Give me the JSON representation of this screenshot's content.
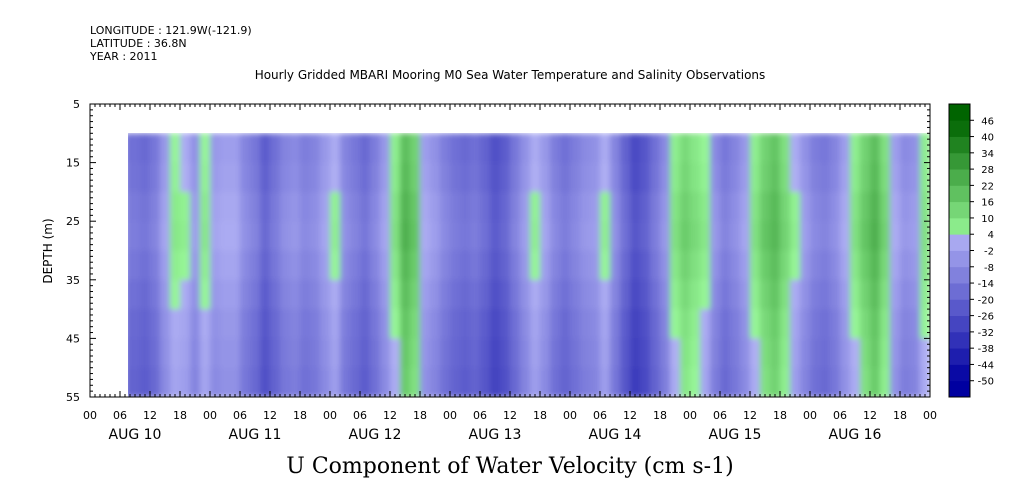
{
  "header": {
    "longitude": "LONGITUDE : 121.9W(-121.9)",
    "latitude": "LATITUDE : 36.8N",
    "year": "YEAR : 2011"
  },
  "chart_data": {
    "type": "heatmap",
    "title": "Hourly Gridded MBARI Mooring M0 Sea Water Temperature and Salinity Observations",
    "caption": "U Component of Water Velocity (cm s-1)",
    "ylabel": "DEPTH (m)",
    "ylim": [
      55,
      5
    ],
    "y_ticks": [
      5,
      15,
      25,
      35,
      45,
      55
    ],
    "data_depth_range": [
      10,
      55
    ],
    "x_hour_ticks": [
      "00",
      "06",
      "12",
      "18",
      "00",
      "06",
      "12",
      "18",
      "00",
      "06",
      "12",
      "18",
      "00",
      "06",
      "12",
      "18",
      "00",
      "06",
      "12",
      "18",
      "00",
      "06",
      "12",
      "18",
      "00",
      "06",
      "12",
      "18",
      "00"
    ],
    "x_day_labels": [
      "AUG 10",
      "AUG 11",
      "AUG 12",
      "AUG 13",
      "AUG 14",
      "AUG 15",
      "AUG 16"
    ],
    "x_range_hours": [
      0,
      168
    ],
    "data_start_hour": 7,
    "colorbar": {
      "levels": [
        -50,
        -44,
        -38,
        -32,
        -26,
        -20,
        -14,
        -8,
        -2,
        4,
        10,
        16,
        22,
        28,
        34,
        40,
        46
      ],
      "labels": [
        "46",
        "40",
        "34",
        "28",
        "22",
        "16",
        "10",
        "4",
        "-2",
        "-8",
        "-14",
        "-20",
        "-26",
        "-32",
        "-38",
        "-44",
        "-50"
      ]
    },
    "column_hours": [
      7,
      10,
      12,
      14,
      16,
      18,
      20,
      22,
      24,
      26,
      28,
      30,
      32,
      34,
      36,
      38,
      40,
      42,
      44,
      46,
      48,
      50,
      52,
      54,
      56,
      58,
      60,
      62,
      64,
      66,
      68,
      70,
      72,
      74,
      76,
      78,
      80,
      82,
      84,
      86,
      88,
      90,
      92,
      94,
      96,
      98,
      100,
      102,
      104,
      106,
      108,
      110,
      112,
      114,
      116,
      118,
      120,
      122,
      124,
      126,
      128,
      130,
      132,
      134,
      136,
      138,
      140,
      142,
      144,
      146,
      148,
      150,
      152,
      154,
      156,
      158,
      160,
      162,
      164,
      166,
      168
    ],
    "column_values": [
      -16,
      -18,
      -14,
      -4,
      4,
      2,
      -6,
      4,
      -4,
      -2,
      -2,
      -10,
      -14,
      -22,
      -16,
      -10,
      -8,
      -12,
      -10,
      -4,
      2,
      -10,
      -14,
      -18,
      -12,
      -4,
      6,
      20,
      14,
      -2,
      -6,
      -12,
      -16,
      -18,
      -16,
      -20,
      -26,
      -22,
      -14,
      -6,
      2,
      -4,
      -12,
      -16,
      -12,
      -8,
      -6,
      2,
      -10,
      -20,
      -28,
      -24,
      -16,
      -8,
      6,
      12,
      8,
      4,
      -8,
      -14,
      -10,
      -4,
      6,
      14,
      18,
      10,
      2,
      -6,
      -12,
      -14,
      -10,
      -2,
      6,
      14,
      20,
      10,
      -2,
      -8,
      -6,
      6,
      8
    ],
    "depth_levels": [
      10,
      15,
      20,
      25,
      30,
      35,
      40,
      45,
      50,
      55
    ],
    "depth_adjust": [
      0,
      1,
      3,
      4,
      2,
      0,
      -2,
      -3,
      -4,
      -6
    ]
  }
}
